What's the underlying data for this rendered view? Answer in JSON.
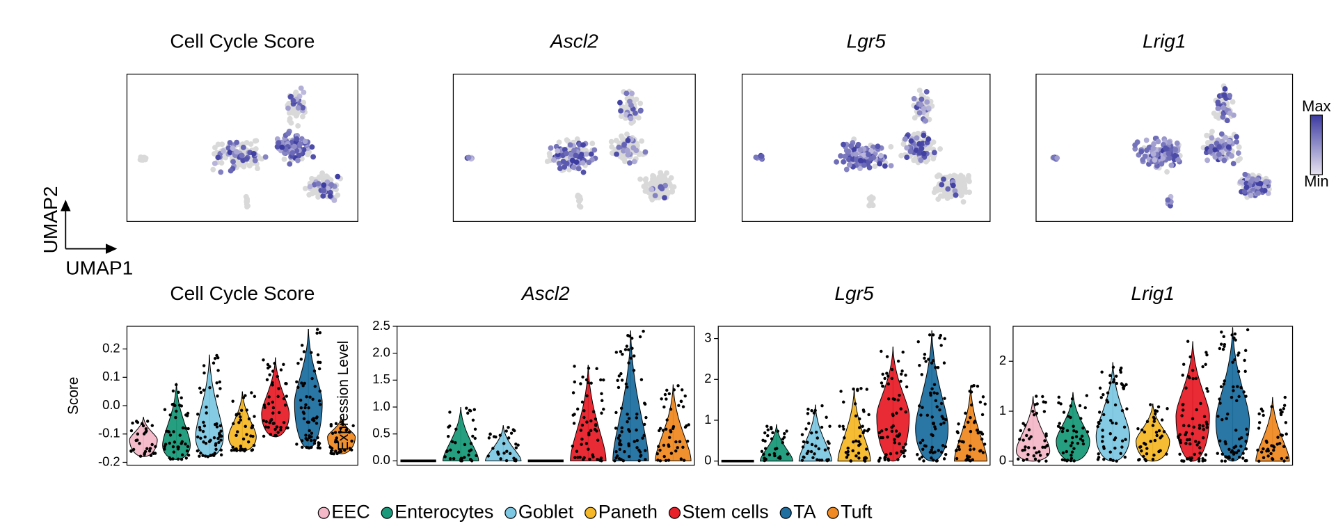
{
  "umap_axes": {
    "x_label": "UMAP1",
    "y_label": "UMAP2"
  },
  "colorbar": {
    "max_label": "Max",
    "min_label": "Min",
    "low_color": "#e8e4f0",
    "high_color": "#3b3aa0"
  },
  "legend": {
    "items": [
      {
        "name": "EEC",
        "color": "#f4b8c8"
      },
      {
        "name": "Enterocytes",
        "color": "#1a9a7a"
      },
      {
        "name": "Goblet",
        "color": "#7ec8e3"
      },
      {
        "name": "Paneth",
        "color": "#f5b829"
      },
      {
        "name": "Stem cells",
        "color": "#e8202a"
      },
      {
        "name": "TA",
        "color": "#1f6fa0"
      },
      {
        "name": "Tuft",
        "color": "#f08a24"
      }
    ]
  },
  "chart_data": [
    {
      "type": "umap",
      "title": "Cell Cycle Score",
      "italic": false
    },
    {
      "type": "umap",
      "title": "Ascl2",
      "italic": true
    },
    {
      "type": "umap",
      "title": "Lgr5",
      "italic": true
    },
    {
      "type": "umap",
      "title": "Lrig1",
      "italic": true
    },
    {
      "type": "violin",
      "title": "Cell Cycle Score",
      "italic": false,
      "ylabel": "Score",
      "ylim": [
        -0.21,
        0.28
      ],
      "yticks": [
        -0.2,
        -0.1,
        {
          "value": 0,
          "label": "0.0"
        },
        0.1,
        0.2
      ],
      "min": [
        -0.18,
        -0.19,
        -0.18,
        -0.16,
        -0.11,
        -0.15,
        -0.17
      ],
      "median": [
        -0.12,
        -0.14,
        -0.11,
        -0.11,
        -0.03,
        0.01,
        -0.11
      ],
      "max": [
        -0.04,
        0.08,
        0.18,
        0.05,
        0.17,
        0.27,
        -0.04
      ]
    },
    {
      "type": "violin",
      "title": "Ascl2",
      "italic": true,
      "ylabel": "Expression Level",
      "ylim": [
        -0.08,
        2.5
      ],
      "yticks": [
        {
          "value": 0,
          "label": "0.0"
        },
        0.5,
        {
          "value": 1,
          "label": "1.0"
        },
        1.5,
        {
          "value": 2,
          "label": "2.0"
        },
        2.5
      ],
      "min": [
        0,
        0,
        0,
        0,
        0,
        0,
        0
      ],
      "median": [
        0,
        0,
        0,
        0,
        0,
        0,
        0
      ],
      "max": [
        0,
        1.0,
        0.66,
        0,
        1.78,
        2.42,
        1.42
      ]
    },
    {
      "type": "violin",
      "title": "Lgr5",
      "italic": true,
      "ylim": [
        -0.1,
        3.3
      ],
      "yticks": [
        0,
        1,
        2,
        3
      ],
      "min": [
        0,
        0,
        0,
        0,
        0,
        0,
        0
      ],
      "median": [
        0,
        0,
        0,
        0,
        1.1,
        0.8,
        0
      ],
      "max": [
        0,
        0.9,
        1.38,
        1.78,
        2.8,
        3.2,
        1.85
      ]
    },
    {
      "type": "violin",
      "title": "Lrig1",
      "italic": true,
      "ylim": [
        -0.08,
        2.7
      ],
      "yticks": [
        0,
        1,
        2
      ],
      "min": [
        0,
        0,
        0,
        0,
        0,
        0,
        0
      ],
      "median": [
        0.2,
        0.4,
        0.5,
        0.4,
        0.9,
        0.8,
        0
      ],
      "max": [
        1.3,
        1.38,
        1.98,
        1.15,
        2.4,
        2.68,
        1.28
      ]
    }
  ]
}
